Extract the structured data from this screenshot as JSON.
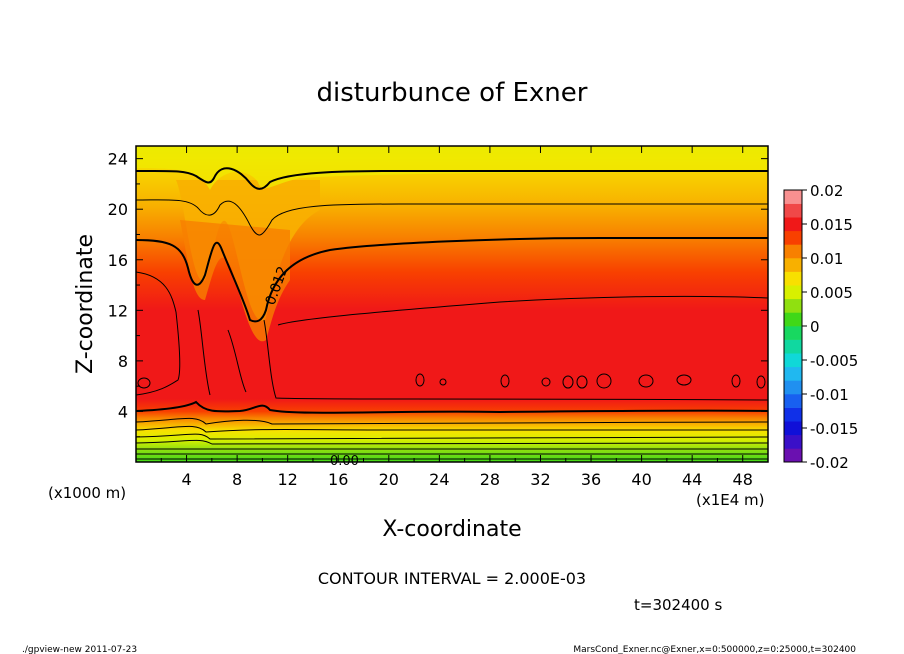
{
  "chart_data": {
    "type": "heatmap",
    "title": "disturbunce of Exner",
    "xlabel": "X-coordinate",
    "ylabel": "Z-coordinate",
    "x_unit": "(x1E4 m)",
    "y_unit": "(x1000 m)",
    "xlim": [
      0,
      50
    ],
    "ylim": [
      0,
      25
    ],
    "x_ticks": [
      4,
      8,
      12,
      16,
      20,
      24,
      28,
      32,
      36,
      40,
      44,
      48
    ],
    "y_ticks": [
      4,
      8,
      12,
      16,
      20,
      24
    ],
    "colorbar": {
      "ticks": [
        0.02,
        0.015,
        0.01,
        0.005,
        0,
        -0.005,
        -0.01,
        -0.015,
        -0.02
      ],
      "tick_labels": [
        "0.02",
        "0.015",
        "0.01",
        "0.005",
        "0",
        "-0.005",
        "-0.01",
        "-0.015",
        "-0.02"
      ],
      "range": [
        -0.02,
        0.02
      ],
      "levels": [
        {
          "from": -0.02,
          "to": -0.018,
          "color": "#6a10b0"
        },
        {
          "from": -0.018,
          "to": -0.016,
          "color": "#3a10c8"
        },
        {
          "from": -0.016,
          "to": -0.014,
          "color": "#1010d8"
        },
        {
          "from": -0.014,
          "to": -0.012,
          "color": "#1030e8"
        },
        {
          "from": -0.012,
          "to": -0.01,
          "color": "#1860f0"
        },
        {
          "from": -0.01,
          "to": -0.008,
          "color": "#2090f0"
        },
        {
          "from": -0.008,
          "to": -0.006,
          "color": "#20b8f0"
        },
        {
          "from": -0.006,
          "to": -0.004,
          "color": "#10d8d8"
        },
        {
          "from": -0.004,
          "to": -0.002,
          "color": "#10d8a0"
        },
        {
          "from": -0.002,
          "to": 0,
          "color": "#18d860"
        },
        {
          "from": 0,
          "to": 0.002,
          "color": "#40d818"
        },
        {
          "from": 0.002,
          "to": 0.004,
          "color": "#90e010"
        },
        {
          "from": 0.004,
          "to": 0.006,
          "color": "#d8f000"
        },
        {
          "from": 0.006,
          "to": 0.008,
          "color": "#f8e000"
        },
        {
          "from": 0.008,
          "to": 0.01,
          "color": "#f8b000"
        },
        {
          "from": 0.01,
          "to": 0.012,
          "color": "#f88000"
        },
        {
          "from": 0.012,
          "to": 0.014,
          "color": "#f84000"
        },
        {
          "from": 0.014,
          "to": 0.016,
          "color": "#f01818"
        },
        {
          "from": 0.016,
          "to": 0.018,
          "color": "#f04848"
        },
        {
          "from": 0.018,
          "to": 0.02,
          "color": "#f89090"
        }
      ]
    },
    "contour_labels": [
      "0.012",
      "0.00"
    ],
    "contour_interval": 0.002
  },
  "annotations": {
    "contour_interval": "CONTOUR INTERVAL = 2.000E-03",
    "time": "t=302400 s",
    "footer_left": "./gpview-new  2011-07-23",
    "footer_right": "MarsCond_Exner.nc@Exner,x=0:500000,z=0:25000,t=302400"
  }
}
